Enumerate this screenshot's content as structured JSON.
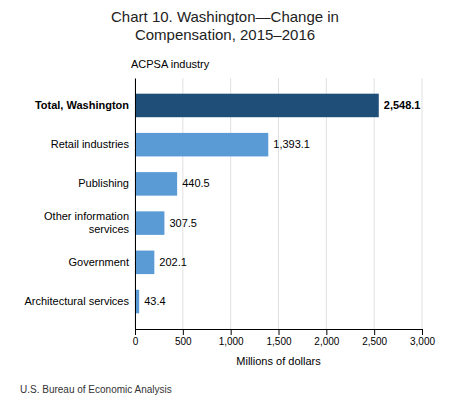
{
  "chart_data": {
    "type": "bar",
    "orientation": "horizontal",
    "title": "Chart 10. Washington—Change in\nCompensation, 2015–2016",
    "ylabel": "ACPSA industry",
    "xlabel": "Millions of dollars",
    "footnote": "U.S. Bureau of Economic Analysis",
    "categories": [
      "Architectural services",
      "Government",
      "Other information\nservices",
      "Publishing",
      "Retail industries",
      "Total, Washington"
    ],
    "values": [
      43.4,
      202.1,
      307.5,
      440.5,
      1393.1,
      2548.1
    ],
    "value_labels": [
      "43.4",
      "202.1",
      "307.5",
      "440.5",
      "1,393.1",
      "2,548.1"
    ],
    "colors": [
      "#5B9BD5",
      "#5B9BD5",
      "#5B9BD5",
      "#5B9BD5",
      "#5B9BD5",
      "#1F4E79"
    ],
    "data_labels": true,
    "xlim": [
      0,
      3000
    ],
    "xticks": [
      0,
      500,
      {
        "value": 1000,
        "label": "1,000"
      },
      {
        "value": 1500,
        "label": "1,500"
      },
      {
        "value": 2000,
        "label": "2,000"
      },
      {
        "value": 2500,
        "label": "2,500"
      },
      {
        "value": 3000,
        "label": "3,000"
      }
    ],
    "grid": true
  }
}
